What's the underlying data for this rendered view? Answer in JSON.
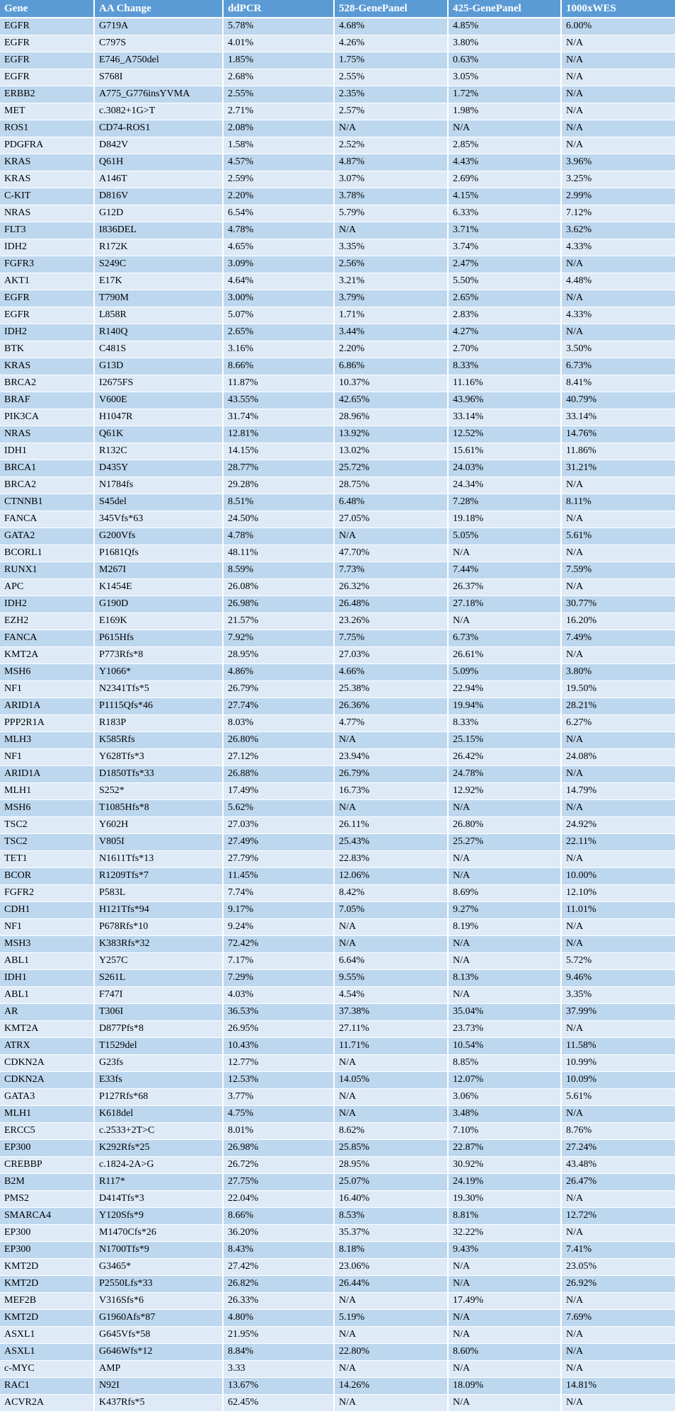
{
  "colors": {
    "header_bg": "#5B9BD5",
    "header_text": "#FFFFFF",
    "row_odd_bg": "#BDD7EE",
    "row_even_bg": "#DEEBF7",
    "border": "#FFFFFF",
    "cell_text": "#000000"
  },
  "table": {
    "headers": [
      "Gene",
      "AA Change",
      "ddPCR",
      "528-GenePanel",
      "425-GenePanel",
      "1000xWES"
    ],
    "rows": [
      [
        "EGFR",
        "G719A",
        "5.78%",
        "4.68%",
        "4.85%",
        "6.00%"
      ],
      [
        "EGFR",
        "C797S",
        "4.01%",
        "4.26%",
        "3.80%",
        "N/A"
      ],
      [
        "EGFR",
        "E746_A750del",
        "1.85%",
        "1.75%",
        "0.63%",
        "N/A"
      ],
      [
        "EGFR",
        "S768I",
        "2.68%",
        "2.55%",
        "3.05%",
        "N/A"
      ],
      [
        "ERBB2",
        "A775_G776insYVMA",
        "2.55%",
        "2.35%",
        "1.72%",
        "N/A"
      ],
      [
        "MET",
        "c.3082+1G>T",
        "2.71%",
        "2.57%",
        "1.98%",
        "N/A"
      ],
      [
        "ROS1",
        "CD74-ROS1",
        "2.08%",
        "N/A",
        "N/A",
        "N/A"
      ],
      [
        "PDGFRA",
        "D842V",
        "1.58%",
        "2.52%",
        "2.85%",
        "N/A"
      ],
      [
        "KRAS",
        "Q61H",
        "4.57%",
        "4.87%",
        "4.43%",
        "3.96%"
      ],
      [
        "KRAS",
        "A146T",
        "2.59%",
        "3.07%",
        "2.69%",
        "3.25%"
      ],
      [
        "C-KIT",
        "D816V",
        "2.20%",
        "3.78%",
        "4.15%",
        "2.99%"
      ],
      [
        "NRAS",
        "G12D",
        "6.54%",
        "5.79%",
        "6.33%",
        "7.12%"
      ],
      [
        "FLT3",
        "I836DEL",
        "4.78%",
        "N/A",
        "3.71%",
        "3.62%"
      ],
      [
        "IDH2",
        "R172K",
        "4.65%",
        "3.35%",
        "3.74%",
        "4.33%"
      ],
      [
        "FGFR3",
        "S249C",
        "3.09%",
        "2.56%",
        "2.47%",
        "N/A"
      ],
      [
        "AKT1",
        "E17K",
        "4.64%",
        "3.21%",
        "5.50%",
        "4.48%"
      ],
      [
        "EGFR",
        "T790M",
        "3.00%",
        "3.79%",
        "2.65%",
        "N/A"
      ],
      [
        "EGFR",
        "L858R",
        "5.07%",
        "1.71%",
        "2.83%",
        "4.33%"
      ],
      [
        "IDH2",
        "R140Q",
        "2.65%",
        "3.44%",
        "4.27%",
        "N/A"
      ],
      [
        "BTK",
        "C481S",
        "3.16%",
        "2.20%",
        "2.70%",
        "3.50%"
      ],
      [
        "KRAS",
        "G13D",
        "8.66%",
        "6.86%",
        "8.33%",
        "6.73%"
      ],
      [
        "BRCA2",
        "I2675FS",
        "11.87%",
        "10.37%",
        "11.16%",
        "8.41%"
      ],
      [
        "BRAF",
        "V600E",
        "43.55%",
        "42.65%",
        "43.96%",
        "40.79%"
      ],
      [
        "PIK3CA",
        "H1047R",
        "31.74%",
        "28.96%",
        "33.14%",
        "33.14%"
      ],
      [
        "NRAS",
        "Q61K",
        "12.81%",
        "13.92%",
        "12.52%",
        "14.76%"
      ],
      [
        "IDH1",
        "R132C",
        "14.15%",
        "13.02%",
        "15.61%",
        "11.86%"
      ],
      [
        "BRCA1",
        "D435Y",
        "28.77%",
        "25.72%",
        "24.03%",
        "31.21%"
      ],
      [
        "BRCA2",
        "N1784fs",
        "29.28%",
        "28.75%",
        "24.34%",
        "N/A"
      ],
      [
        "CTNNB1",
        "S45del",
        "8.51%",
        "6.48%",
        "7.28%",
        "8.11%"
      ],
      [
        "FANCA",
        "345Vfs*63",
        "24.50%",
        "27.05%",
        "19.18%",
        "N/A"
      ],
      [
        "GATA2",
        "G200Vfs",
        "4.78%",
        "N/A",
        "5.05%",
        "5.61%"
      ],
      [
        "BCORL1",
        "P1681Qfs",
        "48.11%",
        "47.70%",
        "N/A",
        "N/A"
      ],
      [
        "RUNX1",
        "M267I",
        "8.59%",
        "7.73%",
        "7.44%",
        "7.59%"
      ],
      [
        "APC",
        "K1454E",
        "26.08%",
        "26.32%",
        "26.37%",
        "N/A"
      ],
      [
        "IDH2",
        "G190D",
        "26.98%",
        "26.48%",
        "27.18%",
        "30.77%"
      ],
      [
        "EZH2",
        "E169K",
        "21.57%",
        "23.26%",
        "N/A",
        "16.20%"
      ],
      [
        "FANCA",
        "P615Hfs",
        "7.92%",
        "7.75%",
        "6.73%",
        "7.49%"
      ],
      [
        "KMT2A",
        "P773Rfs*8",
        "28.95%",
        "27.03%",
        "26.61%",
        "N/A"
      ],
      [
        "MSH6",
        "Y1066*",
        "4.86%",
        "4.66%",
        "5.09%",
        "3.80%"
      ],
      [
        "NF1",
        "N2341Tfs*5",
        "26.79%",
        "25.38%",
        "22.94%",
        "19.50%"
      ],
      [
        "ARID1A",
        "P1115Qfs*46",
        "27.74%",
        "26.36%",
        "19.94%",
        "28.21%"
      ],
      [
        "PPP2R1A",
        "R183P",
        "8.03%",
        "4.77%",
        "8.33%",
        "6.27%"
      ],
      [
        "MLH3",
        "K585Rfs",
        "26.80%",
        "N/A",
        "25.15%",
        "N/A"
      ],
      [
        "NF1",
        "Y628Tfs*3",
        "27.12%",
        "23.94%",
        "26.42%",
        "24.08%"
      ],
      [
        "ARID1A",
        "D1850Tfs*33",
        "26.88%",
        "26.79%",
        "24.78%",
        "N/A"
      ],
      [
        "MLH1",
        "S252*",
        "17.49%",
        "16.73%",
        "12.92%",
        "14.79%"
      ],
      [
        "MSH6",
        "T1085Hfs*8",
        "5.62%",
        "N/A",
        "N/A",
        "N/A"
      ],
      [
        "TSC2",
        "Y602H",
        "27.03%",
        "26.11%",
        "26.80%",
        "24.92%"
      ],
      [
        "TSC2",
        "V805I",
        "27.49%",
        "25.43%",
        "25.27%",
        "22.11%"
      ],
      [
        "TET1",
        "N1611Tfs*13",
        "27.79%",
        "22.83%",
        "N/A",
        "N/A"
      ],
      [
        "BCOR",
        "R1209Tfs*7",
        "11.45%",
        "12.06%",
        "N/A",
        "10.00%"
      ],
      [
        "FGFR2",
        "P583L",
        "7.74%",
        "8.42%",
        "8.69%",
        "12.10%"
      ],
      [
        "CDH1",
        "H121Tfs*94",
        "9.17%",
        "7.05%",
        "9.27%",
        "11.01%"
      ],
      [
        "NF1",
        "P678Rfs*10",
        "9.24%",
        "N/A",
        "8.19%",
        "N/A"
      ],
      [
        "MSH3",
        "K383Rfs*32",
        "72.42%",
        "N/A",
        "N/A",
        "N/A"
      ],
      [
        "ABL1",
        "Y257C",
        "7.17%",
        "6.64%",
        "N/A",
        "5.72%"
      ],
      [
        "IDH1",
        "S261L",
        "7.29%",
        "9.55%",
        "8.13%",
        "9.46%"
      ],
      [
        "ABL1",
        "F747I",
        "4.03%",
        "4.54%",
        "N/A",
        "3.35%"
      ],
      [
        "AR",
        "T306I",
        "36.53%",
        "37.38%",
        "35.04%",
        "37.99%"
      ],
      [
        "KMT2A",
        "D877Pfs*8",
        "26.95%",
        "27.11%",
        "23.73%",
        "N/A"
      ],
      [
        "ATRX",
        "T1529del",
        "10.43%",
        "11.71%",
        "10.54%",
        "11.58%"
      ],
      [
        "CDKN2A",
        "G23fs",
        "12.77%",
        "N/A",
        "8.85%",
        "10.99%"
      ],
      [
        "CDKN2A",
        "E33fs",
        "12.53%",
        "14.05%",
        "12.07%",
        "10.09%"
      ],
      [
        "GATA3",
        "P127Rfs*68",
        "3.77%",
        "N/A",
        "3.06%",
        "5.61%"
      ],
      [
        "MLH1",
        "K618del",
        "4.75%",
        "N/A",
        "3.48%",
        "N/A"
      ],
      [
        "ERCC5",
        "c.2533+2T>C",
        "8.01%",
        "8.62%",
        "7.10%",
        "8.76%"
      ],
      [
        "EP300",
        "K292Rfs*25",
        "26.98%",
        "25.85%",
        "22.87%",
        "27.24%"
      ],
      [
        "CREBBP",
        "c.1824-2A>G",
        "26.72%",
        "28.95%",
        "30.92%",
        "43.48%"
      ],
      [
        "B2M",
        "R117*",
        "27.75%",
        "25.07%",
        "24.19%",
        "26.47%"
      ],
      [
        "PMS2",
        "D414Tfs*3",
        "22.04%",
        "16.40%",
        "19.30%",
        "N/A"
      ],
      [
        "SMARCA4",
        "Y120Sfs*9",
        "8.66%",
        "8.53%",
        "8.81%",
        "12.72%"
      ],
      [
        "EP300",
        "M1470Cfs*26",
        "36.20%",
        "35.37%",
        "32.22%",
        "N/A"
      ],
      [
        "EP300",
        "N1700Tfs*9",
        "8.43%",
        "8.18%",
        "9.43%",
        "7.41%"
      ],
      [
        "KMT2D",
        "G3465*",
        "27.42%",
        "23.06%",
        "N/A",
        "23.05%"
      ],
      [
        "KMT2D",
        "P2550Lfs*33",
        "26.82%",
        "26.44%",
        "N/A",
        "26.92%"
      ],
      [
        "MEF2B",
        "V316Sfs*6",
        "26.33%",
        "N/A",
        "17.49%",
        "N/A"
      ],
      [
        "KMT2D",
        "G1960Afs*87",
        "4.80%",
        "5.19%",
        "N/A",
        "7.69%"
      ],
      [
        "ASXL1",
        "G645Vfs*58",
        "21.95%",
        "N/A",
        "N/A",
        "N/A"
      ],
      [
        "ASXL1",
        "G646Wfs*12",
        "8.84%",
        "22.80%",
        "8.60%",
        "N/A"
      ],
      [
        "c-MYC",
        "AMP",
        "3.33",
        "N/A",
        "N/A",
        "N/A"
      ],
      [
        "RAC1",
        "N92I",
        "13.67%",
        "14.26%",
        "18.09%",
        "14.81%"
      ],
      [
        "ACVR2A",
        "K437Rfs*5",
        "62.45%",
        "N/A",
        "N/A",
        "N/A"
      ]
    ]
  }
}
